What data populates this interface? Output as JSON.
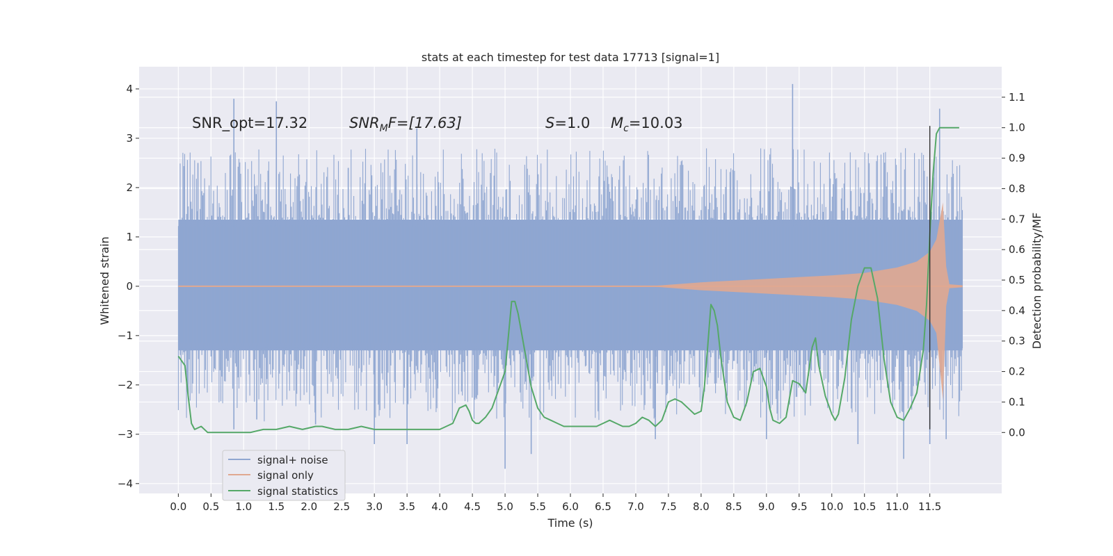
{
  "chart_data": {
    "type": "line",
    "title": "stats at each timestep for test data 17713 [signal=1]",
    "xlabel": "Time (s)",
    "ylabel_left": "Whitened strain",
    "ylabel_right": "Detection probability/MF",
    "xlim": [
      -0.6,
      12.6
    ],
    "ylim_left": [
      -4.2,
      4.45
    ],
    "ylim_right": [
      -0.2,
      1.2
    ],
    "x_ticks": [
      0.0,
      0.5,
      1.0,
      1.5,
      2.0,
      2.5,
      3.0,
      3.5,
      4.0,
      4.5,
      5.0,
      5.5,
      6.0,
      6.5,
      7.0,
      7.5,
      8.0,
      8.5,
      9.0,
      9.5,
      10.0,
      10.5,
      11.0,
      11.5
    ],
    "y_ticks_left": [
      -4,
      -3,
      -2,
      -1,
      0,
      1,
      2,
      3,
      4
    ],
    "y_ticks_right": [
      0.0,
      0.1,
      0.2,
      0.3,
      0.4,
      0.5,
      0.6,
      0.7,
      0.8,
      0.9,
      1.0,
      1.1
    ],
    "annotations": {
      "snr_opt": "SNR_opt=17.32",
      "snr_mf_sym": "SNR",
      "snr_mf_sub": "M",
      "snr_mf_rest": "F=[17.63]",
      "s_sym": "S",
      "s_rest": "=1.0",
      "mc_sym": "M",
      "mc_sub": "c",
      "mc_rest": "=10.03"
    },
    "legend": [
      {
        "label": "signal+ noise",
        "color": "#8fa6d1"
      },
      {
        "label": "signal only",
        "color": "#e0a890"
      },
      {
        "label": "signal statistics",
        "color": "#55a868"
      }
    ],
    "series": {
      "noise": {
        "name": "signal+ noise",
        "x_range": [
          0.0,
          12.0
        ],
        "band_upper": 1.35,
        "band_lower": -1.3,
        "peaks": [
          [
            0.3,
            2.5
          ],
          [
            0.85,
            3.8
          ],
          [
            1.5,
            3.75
          ],
          [
            2.6,
            2.4
          ],
          [
            3.65,
            3.2
          ],
          [
            9.4,
            4.1
          ],
          [
            11.65,
            3.6
          ],
          [
            0.85,
            -2.9
          ],
          [
            1.2,
            -2.7
          ],
          [
            2.1,
            -2.8
          ],
          [
            3.0,
            -3.2
          ],
          [
            3.5,
            -3.2
          ],
          [
            5.0,
            -3.7
          ],
          [
            5.4,
            -3.4
          ],
          [
            7.3,
            -3.1
          ],
          [
            9.0,
            -3.1
          ],
          [
            10.4,
            -3.2
          ],
          [
            11.1,
            -3.5
          ],
          [
            11.5,
            -3.2
          ],
          [
            11.75,
            -3.1
          ]
        ],
        "color": "#8fa6d1"
      },
      "signal": {
        "name": "signal only",
        "x_range": [
          0.0,
          12.0
        ],
        "envelope_x": [
          7.2,
          8.0,
          9.0,
          10.0,
          10.5,
          11.0,
          11.3,
          11.5,
          11.6,
          11.7,
          11.75,
          11.8,
          12.0
        ],
        "envelope_y": [
          0.0,
          0.08,
          0.15,
          0.22,
          0.27,
          0.38,
          0.5,
          0.7,
          0.95,
          1.7,
          0.4,
          0.04,
          0.02
        ],
        "min_point": [
          11.67,
          -2.3
        ],
        "color": "#e0a890"
      },
      "statistics": {
        "name": "signal statistics",
        "x": [
          0.0,
          0.1,
          0.15,
          0.2,
          0.25,
          0.35,
          0.45,
          0.55,
          0.7,
          0.9,
          1.1,
          1.3,
          1.5,
          1.7,
          1.9,
          2.1,
          2.2,
          2.4,
          2.6,
          2.8,
          3.0,
          3.2,
          3.4,
          3.6,
          3.8,
          4.0,
          4.2,
          4.3,
          4.4,
          4.45,
          4.5,
          4.55,
          4.6,
          4.7,
          4.8,
          4.9,
          5.0,
          5.1,
          5.15,
          5.2,
          5.3,
          5.4,
          5.5,
          5.6,
          5.7,
          5.8,
          5.9,
          6.0,
          6.1,
          6.2,
          6.3,
          6.4,
          6.5,
          6.6,
          6.7,
          6.8,
          6.9,
          7.0,
          7.1,
          7.2,
          7.25,
          7.3,
          7.35,
          7.4,
          7.5,
          7.6,
          7.7,
          7.8,
          7.9,
          8.0,
          8.05,
          8.1,
          8.15,
          8.2,
          8.25,
          8.3,
          8.4,
          8.5,
          8.6,
          8.7,
          8.8,
          8.9,
          9.0,
          9.05,
          9.1,
          9.2,
          9.3,
          9.4,
          9.5,
          9.6,
          9.7,
          9.75,
          9.8,
          9.9,
          10.0,
          10.05,
          10.1,
          10.2,
          10.3,
          10.4,
          10.5,
          10.6,
          10.7,
          10.8,
          10.9,
          11.0,
          11.1,
          11.2,
          11.3,
          11.4,
          11.45,
          11.5,
          11.55,
          11.6,
          11.65,
          11.7,
          11.8,
          11.9,
          11.95
        ],
        "y": [
          0.25,
          0.22,
          0.12,
          0.03,
          0.01,
          0.02,
          0.0,
          0.0,
          0.0,
          0.0,
          0.0,
          0.01,
          0.01,
          0.02,
          0.01,
          0.02,
          0.02,
          0.01,
          0.01,
          0.02,
          0.01,
          0.01,
          0.01,
          0.01,
          0.01,
          0.01,
          0.03,
          0.08,
          0.09,
          0.07,
          0.04,
          0.03,
          0.03,
          0.05,
          0.08,
          0.14,
          0.2,
          0.43,
          0.43,
          0.39,
          0.27,
          0.15,
          0.08,
          0.05,
          0.04,
          0.03,
          0.02,
          0.02,
          0.02,
          0.02,
          0.02,
          0.02,
          0.03,
          0.04,
          0.03,
          0.02,
          0.02,
          0.03,
          0.05,
          0.04,
          0.03,
          0.02,
          0.03,
          0.04,
          0.1,
          0.11,
          0.1,
          0.08,
          0.06,
          0.07,
          0.15,
          0.28,
          0.42,
          0.4,
          0.35,
          0.25,
          0.1,
          0.05,
          0.04,
          0.1,
          0.2,
          0.21,
          0.15,
          0.08,
          0.04,
          0.03,
          0.05,
          0.17,
          0.16,
          0.13,
          0.28,
          0.31,
          0.22,
          0.12,
          0.06,
          0.04,
          0.06,
          0.18,
          0.37,
          0.48,
          0.54,
          0.54,
          0.44,
          0.24,
          0.1,
          0.05,
          0.04,
          0.08,
          0.13,
          0.27,
          0.42,
          0.65,
          0.85,
          0.98,
          1.0,
          1.0,
          1.0,
          1.0,
          1.0
        ],
        "color": "#55a868"
      },
      "marker": {
        "x": 11.5,
        "y_range": [
          -2.9,
          3.25
        ],
        "color": "#333333"
      }
    }
  }
}
